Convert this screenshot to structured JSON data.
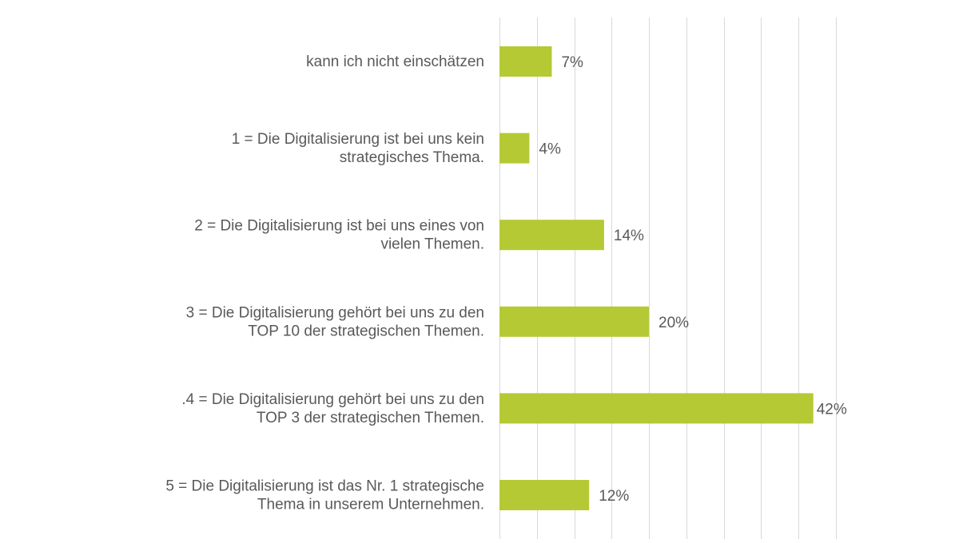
{
  "chart_data": {
    "type": "bar",
    "orientation": "horizontal",
    "categories": [
      [
        "kann ich nicht einschätzen"
      ],
      [
        "1 = Die Digitalisierung ist bei uns kein",
        "strategisches Thema."
      ],
      [
        "2 = Die Digitalisierung ist bei uns eines von",
        "vielen Themen."
      ],
      [
        "3 = Die Digitalisierung gehört bei uns zu den",
        "TOP 10 der strategischen Themen."
      ],
      [
        ".4 = Die Digitalisierung gehört bei uns zu den",
        "TOP 3 der strategischen Themen."
      ],
      [
        "5 = Die Digitalisierung ist das Nr. 1 strategische",
        "Thema in unserem Unternehmen."
      ]
    ],
    "values": [
      7,
      4,
      14,
      20,
      42,
      12
    ],
    "value_labels": [
      "7%",
      "4%",
      "14%",
      "20%",
      "42%",
      "12%"
    ],
    "xlim": [
      0,
      45
    ],
    "grid_step": 5,
    "grid": true,
    "bar_color": "#b5c934",
    "grid_color": "#d9d9d9",
    "text_color": "#595959"
  }
}
